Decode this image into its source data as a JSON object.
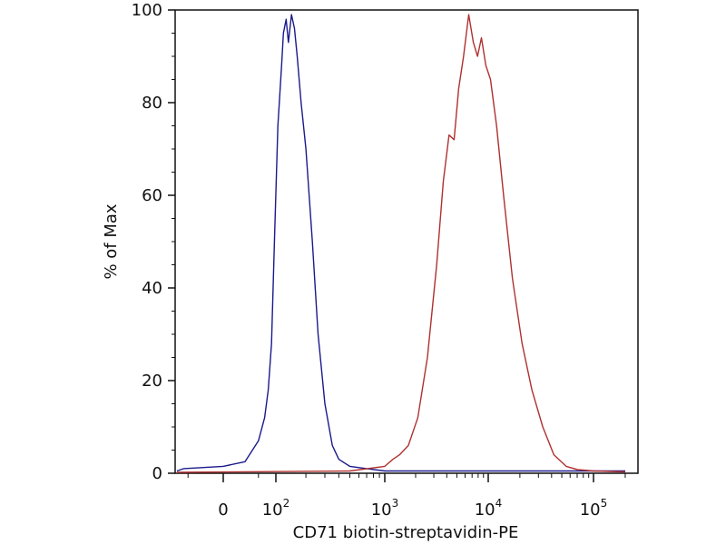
{
  "chart_data": {
    "type": "line",
    "title": "",
    "xlabel": "CD71 biotin-streptavidin-PE",
    "ylabel": "% of Max",
    "x_scale": "biexponential",
    "ylim": [
      0,
      100
    ],
    "y_ticks": [
      {
        "value": 0,
        "label": "0"
      },
      {
        "value": 20,
        "label": "20"
      },
      {
        "value": 40,
        "label": "40"
      },
      {
        "value": 60,
        "label": "60"
      },
      {
        "value": 80,
        "label": "80"
      },
      {
        "value": 100,
        "label": "100"
      }
    ],
    "x_ticks": [
      {
        "value": 0,
        "base": "0",
        "exp": ""
      },
      {
        "value": 100,
        "base": "10",
        "exp": "2"
      },
      {
        "value": 1000,
        "base": "10",
        "exp": "3"
      },
      {
        "value": 10000,
        "base": "10",
        "exp": "4"
      },
      {
        "value": 100000,
        "base": "10",
        "exp": "5"
      }
    ],
    "grid": false,
    "legend": "none",
    "series": [
      {
        "color": "#1a1a8c",
        "points": [
          [
            -200,
            0.5
          ],
          [
            -60,
            1
          ],
          [
            0,
            1.5
          ],
          [
            25,
            2.5
          ],
          [
            50,
            7
          ],
          [
            65,
            12
          ],
          [
            75,
            18
          ],
          [
            85,
            28
          ],
          [
            95,
            50
          ],
          [
            105,
            75
          ],
          [
            115,
            88
          ],
          [
            120,
            95
          ],
          [
            128,
            98
          ],
          [
            135,
            93
          ],
          [
            145,
            99
          ],
          [
            155,
            96
          ],
          [
            165,
            90
          ],
          [
            180,
            80
          ],
          [
            200,
            70
          ],
          [
            230,
            50
          ],
          [
            260,
            30
          ],
          [
            300,
            15
          ],
          [
            350,
            6
          ],
          [
            400,
            3
          ],
          [
            500,
            1.5
          ],
          [
            700,
            1
          ],
          [
            1000,
            0.5
          ],
          [
            10000,
            0.5
          ],
          [
            200000,
            0.5
          ]
        ]
      },
      {
        "color": "#b03030",
        "points": [
          [
            -200,
            0.2
          ],
          [
            500,
            0.5
          ],
          [
            1000,
            1.5
          ],
          [
            1200,
            3
          ],
          [
            1400,
            4
          ],
          [
            1700,
            6
          ],
          [
            2100,
            12
          ],
          [
            2600,
            25
          ],
          [
            3200,
            45
          ],
          [
            3700,
            63
          ],
          [
            4200,
            73
          ],
          [
            4700,
            72
          ],
          [
            5200,
            83
          ],
          [
            5800,
            90
          ],
          [
            6500,
            99
          ],
          [
            7200,
            93
          ],
          [
            7900,
            90
          ],
          [
            8600,
            94
          ],
          [
            9500,
            88
          ],
          [
            10500,
            85
          ],
          [
            12000,
            75
          ],
          [
            14000,
            60
          ],
          [
            17000,
            42
          ],
          [
            21000,
            28
          ],
          [
            26000,
            18
          ],
          [
            33000,
            10
          ],
          [
            42000,
            4
          ],
          [
            55000,
            1.5
          ],
          [
            70000,
            0.8
          ],
          [
            100000,
            0.5
          ],
          [
            200000,
            0.3
          ]
        ]
      }
    ]
  }
}
